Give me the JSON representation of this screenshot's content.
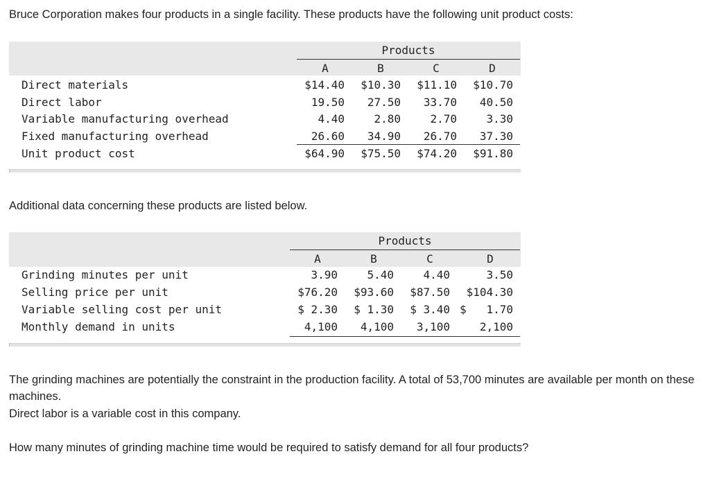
{
  "intro": "Bruce Corporation makes four products in a single facility. These products have the following unit product costs:",
  "table1": {
    "group_header": "Products",
    "columns": [
      "A",
      "B",
      "C",
      "D"
    ],
    "rows": [
      {
        "label": "Direct materials",
        "values": [
          "$14.40",
          "$10.30",
          "$11.10",
          "$10.70"
        ]
      },
      {
        "label": "Direct labor",
        "values": [
          "19.50",
          "27.50",
          "33.70",
          "40.50"
        ]
      },
      {
        "label": "Variable manufacturing overhead",
        "values": [
          "4.40",
          "2.80",
          "2.70",
          "3.30"
        ]
      },
      {
        "label": "Fixed manufacturing overhead",
        "values": [
          "26.60",
          "34.90",
          "26.70",
          "37.30"
        ]
      },
      {
        "label": "Unit product cost",
        "values": [
          "$64.90",
          "$75.50",
          "$74.20",
          "$91.80"
        ]
      }
    ]
  },
  "additional_text": "Additional data concerning these products are listed below.",
  "table2": {
    "group_header": "Products",
    "columns": [
      "A",
      "B",
      "C",
      "D"
    ],
    "rows": [
      {
        "label": "Grinding minutes per unit",
        "values": [
          "3.90",
          "5.40",
          "4.40",
          "3.50"
        ]
      },
      {
        "label": "Selling price per unit",
        "values": [
          "$76.20",
          "$93.60",
          "$87.50",
          "$104.30"
        ]
      },
      {
        "label": "Variable selling cost per unit",
        "values": [
          "$ 2.30",
          "$ 1.30",
          "$ 3.40",
          "$   1.70"
        ]
      },
      {
        "label": "Monthly demand in units",
        "values": [
          "4,100",
          "4,100",
          "3,100",
          "2,100"
        ]
      }
    ]
  },
  "constraint_text_1": "The grinding machines are potentially the constraint in the production facility. A total of 53,700 minutes are available per month on these machines.",
  "constraint_text_2": "Direct labor is a variable cost in this company.",
  "question": "How many minutes of grinding machine time would be required to satisfy demand for all four products?"
}
